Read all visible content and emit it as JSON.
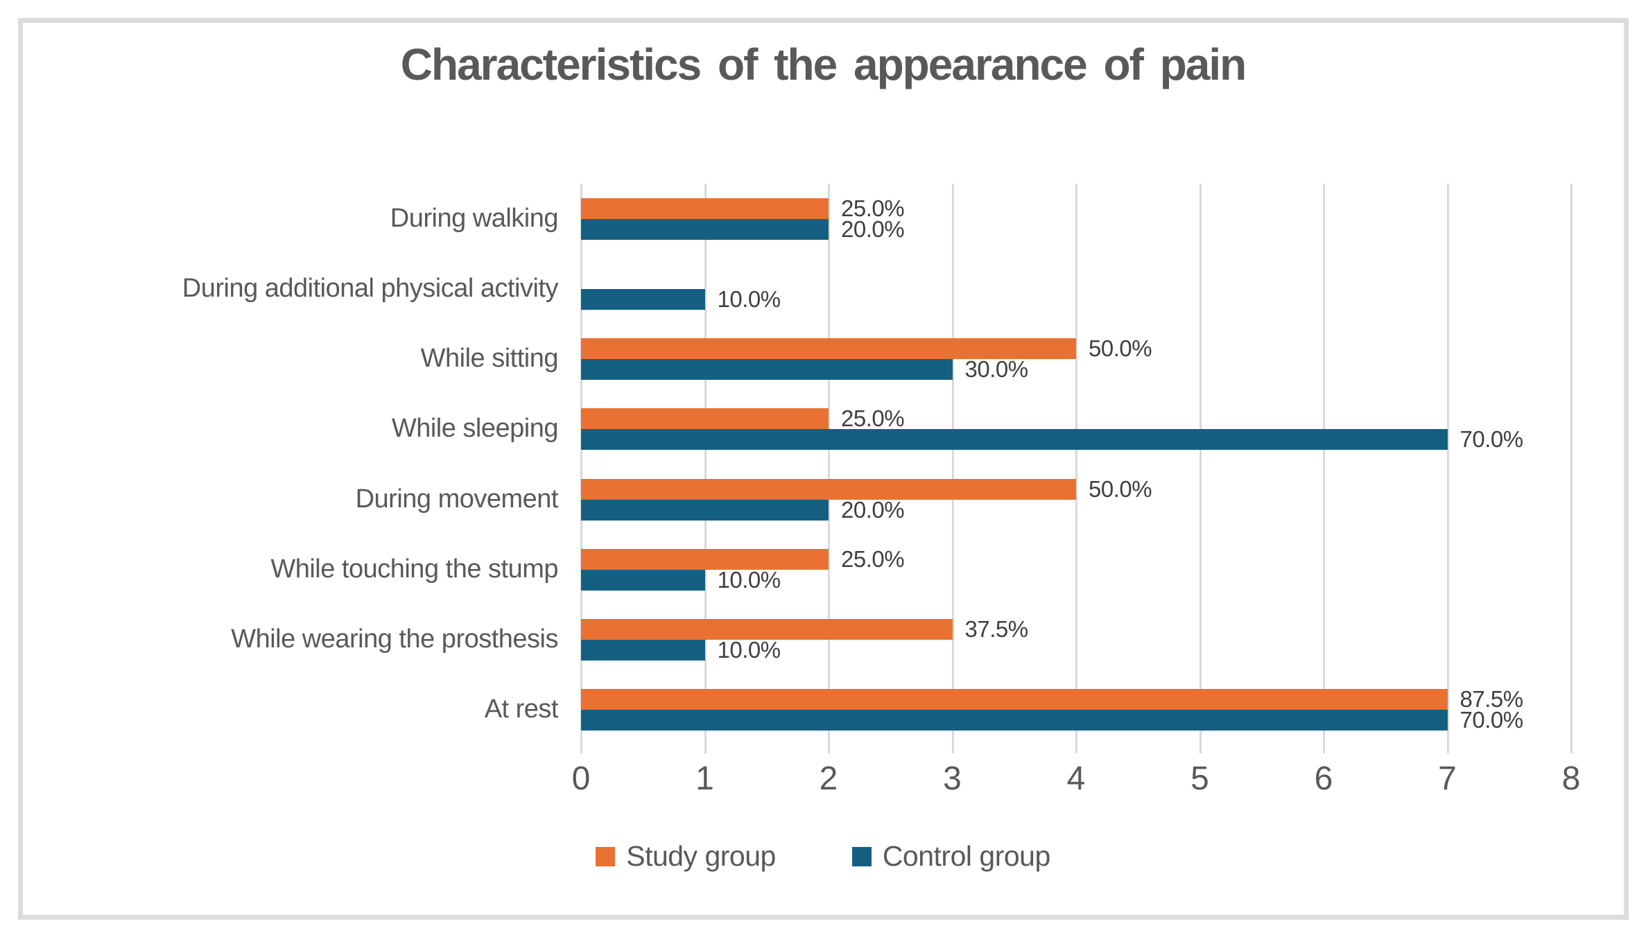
{
  "colors": {
    "background": "#FFFFFF",
    "frame_border": "#DCDCDC",
    "gridline": "#D9D9D9",
    "title_text": "#595959",
    "axis_text": "#595959",
    "data_label_text": "#3F3F3F",
    "study_group": "#E97132",
    "control_group": "#156082"
  },
  "chart_data": {
    "type": "bar",
    "orientation": "horizontal",
    "title": "Characteristics of the appearance of pain",
    "categories": [
      "During walking",
      "During additional physical activity",
      "While sitting",
      "While sleeping",
      "During movement",
      "While touching the stump",
      "While wearing the prosthesis",
      "At rest"
    ],
    "series": [
      {
        "name": "Study group",
        "color": "#E97132",
        "values": [
          2,
          null,
          4,
          2,
          4,
          2,
          3,
          7
        ],
        "labels": [
          "25.0%",
          null,
          "50.0%",
          "25.0%",
          "50.0%",
          "25.0%",
          "37.5%",
          "87.5%"
        ]
      },
      {
        "name": "Control group",
        "color": "#156082",
        "values": [
          2,
          1,
          3,
          7,
          2,
          1,
          1,
          7
        ],
        "labels": [
          "20.0%",
          "10.0%",
          "30.0%",
          "70.0%",
          "20.0%",
          "10.0%",
          "10.0%",
          "70.0%"
        ]
      }
    ],
    "xlim": [
      0,
      8
    ],
    "x_ticks": [
      0,
      1,
      2,
      3,
      4,
      5,
      6,
      7,
      8
    ],
    "grid": true,
    "legend_position": "bottom"
  }
}
